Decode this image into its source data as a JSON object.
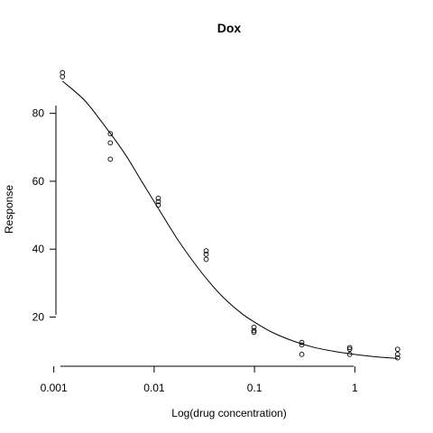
{
  "chart_data": {
    "type": "scatter",
    "title": "Dox",
    "xlabel": "Log(drug concentration)",
    "ylabel": "Response",
    "x_scale": "log10",
    "xlim": [
      0.00105,
      3.1
    ],
    "ylim": [
      5.5,
      94
    ],
    "x_ticks": [
      {
        "value": 0.001,
        "label": "0.001"
      },
      {
        "value": 0.01,
        "label": "0.01"
      },
      {
        "value": 0.1,
        "label": "0.1"
      },
      {
        "value": 1,
        "label": "1"
      }
    ],
    "y_ticks": [
      {
        "value": 20,
        "label": "20"
      },
      {
        "value": 40,
        "label": "40"
      },
      {
        "value": 60,
        "label": "60"
      },
      {
        "value": 80,
        "label": "80"
      }
    ],
    "points": [
      {
        "x": 0.00122,
        "y": 92.0
      },
      {
        "x": 0.00122,
        "y": 90.8
      },
      {
        "x": 0.00366,
        "y": 74.0
      },
      {
        "x": 0.00366,
        "y": 71.3
      },
      {
        "x": 0.00366,
        "y": 66.5
      },
      {
        "x": 0.011,
        "y": 55.0
      },
      {
        "x": 0.011,
        "y": 54.0
      },
      {
        "x": 0.011,
        "y": 53.0
      },
      {
        "x": 0.033,
        "y": 39.5
      },
      {
        "x": 0.033,
        "y": 38.5
      },
      {
        "x": 0.033,
        "y": 37.0
      },
      {
        "x": 0.0988,
        "y": 17.0
      },
      {
        "x": 0.0988,
        "y": 16.0
      },
      {
        "x": 0.0988,
        "y": 15.5
      },
      {
        "x": 0.296,
        "y": 12.5
      },
      {
        "x": 0.296,
        "y": 11.8
      },
      {
        "x": 0.296,
        "y": 9.0
      },
      {
        "x": 0.889,
        "y": 11.0
      },
      {
        "x": 0.889,
        "y": 10.5
      },
      {
        "x": 0.889,
        "y": 9.0
      },
      {
        "x": 2.67,
        "y": 10.5
      },
      {
        "x": 2.67,
        "y": 9.0
      },
      {
        "x": 2.67,
        "y": 8.0
      }
    ],
    "fit_curve": [
      {
        "x": 0.00122,
        "y": 89.5
      },
      {
        "x": 0.002,
        "y": 84.0
      },
      {
        "x": 0.003,
        "y": 77.5
      },
      {
        "x": 0.005,
        "y": 68.5
      },
      {
        "x": 0.0075,
        "y": 60.0
      },
      {
        "x": 0.011,
        "y": 52.0
      },
      {
        "x": 0.017,
        "y": 43.0
      },
      {
        "x": 0.025,
        "y": 36.0
      },
      {
        "x": 0.035,
        "y": 30.5
      },
      {
        "x": 0.05,
        "y": 25.5
      },
      {
        "x": 0.075,
        "y": 21.0
      },
      {
        "x": 0.1,
        "y": 18.5
      },
      {
        "x": 0.15,
        "y": 15.5
      },
      {
        "x": 0.25,
        "y": 12.8
      },
      {
        "x": 0.4,
        "y": 11.0
      },
      {
        "x": 0.65,
        "y": 9.8
      },
      {
        "x": 1.0,
        "y": 9.0
      },
      {
        "x": 1.6,
        "y": 8.3
      },
      {
        "x": 2.67,
        "y": 7.8
      }
    ],
    "grid": false,
    "legend": "none"
  }
}
